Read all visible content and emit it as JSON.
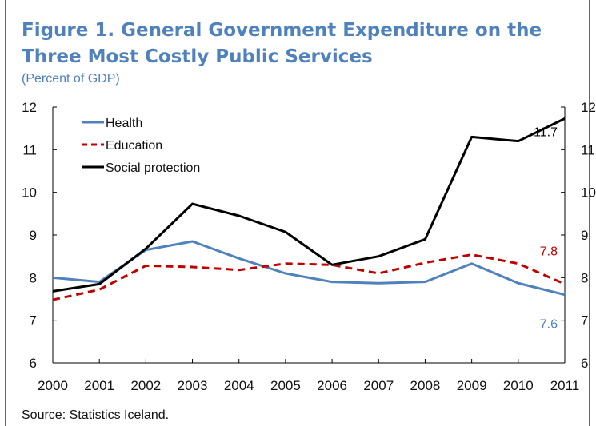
{
  "figure": {
    "title": "Figure 1. General Government Expenditure on the Three Most Costly Public Services",
    "subtitle": "(Percent of GDP)",
    "source": "Source: Statistics Iceland."
  },
  "chart_data": {
    "type": "line",
    "x": [
      "2000",
      "2001",
      "2002",
      "2003",
      "2004",
      "2005",
      "2006",
      "2007",
      "2008",
      "2009",
      "2010",
      "2011"
    ],
    "ylim": [
      6,
      12
    ],
    "yticks": [
      "6",
      "7",
      "8",
      "9",
      "10",
      "11",
      "12"
    ],
    "grid": false,
    "legend_position": "top-left",
    "series": [
      {
        "name": "Health",
        "color": "#4f81bd",
        "dash": "solid",
        "values": [
          8.0,
          7.9,
          8.65,
          8.85,
          8.45,
          8.1,
          7.9,
          7.87,
          7.9,
          8.33,
          7.87,
          7.6
        ]
      },
      {
        "name": "Education",
        "color": "#c00000",
        "dash": "dashed",
        "values": [
          7.48,
          7.72,
          8.28,
          8.25,
          8.18,
          8.33,
          8.3,
          8.1,
          8.35,
          8.54,
          8.33,
          7.85
        ]
      },
      {
        "name": "Social protection",
        "color": "#000000",
        "dash": "solid",
        "values": [
          7.68,
          7.85,
          8.68,
          9.73,
          9.45,
          9.07,
          8.3,
          8.5,
          8.9,
          11.3,
          11.2,
          11.73
        ]
      }
    ],
    "annotations": [
      {
        "text": "11.7",
        "series": "Social protection",
        "color": "#000000"
      },
      {
        "text": "7.8",
        "series": "Education",
        "color": "#c00000"
      },
      {
        "text": "7.6",
        "series": "Health",
        "color": "#4f81bd"
      }
    ]
  }
}
